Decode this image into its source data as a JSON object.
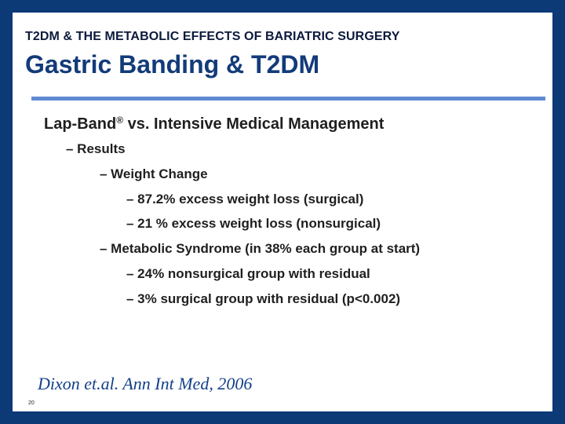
{
  "header": {
    "supertitle": "T2DM & THE METABOLIC EFFECTS OF BARIATRIC SURGERY",
    "title": "Gastric Banding & T2DM"
  },
  "body": {
    "heading_prefix": "Lap-Band",
    "heading_mark": "®",
    "heading_suffix": " vs. Intensive Medical Management",
    "results": "– Results",
    "weight_change": "– Weight Change",
    "surgical_loss": "– 87.2% excess weight loss (surgical)",
    "nonsurgical_loss": "– 21 % excess weight loss (nonsurgical)",
    "metabolic": "– Metabolic Syndrome (in 38% each group at start)",
    "nonsurgical_residual": "– 24% nonsurgical group with residual",
    "surgical_residual": "– 3% surgical group with residual (p<0.002)"
  },
  "footer": {
    "citation": "Dixon et.al. Ann Int Med, 2006",
    "slide_number": "20"
  },
  "colors": {
    "frame": "#0c3a77",
    "title": "#123b79",
    "rule": "#5f8ad1",
    "citation": "#133f8a"
  }
}
